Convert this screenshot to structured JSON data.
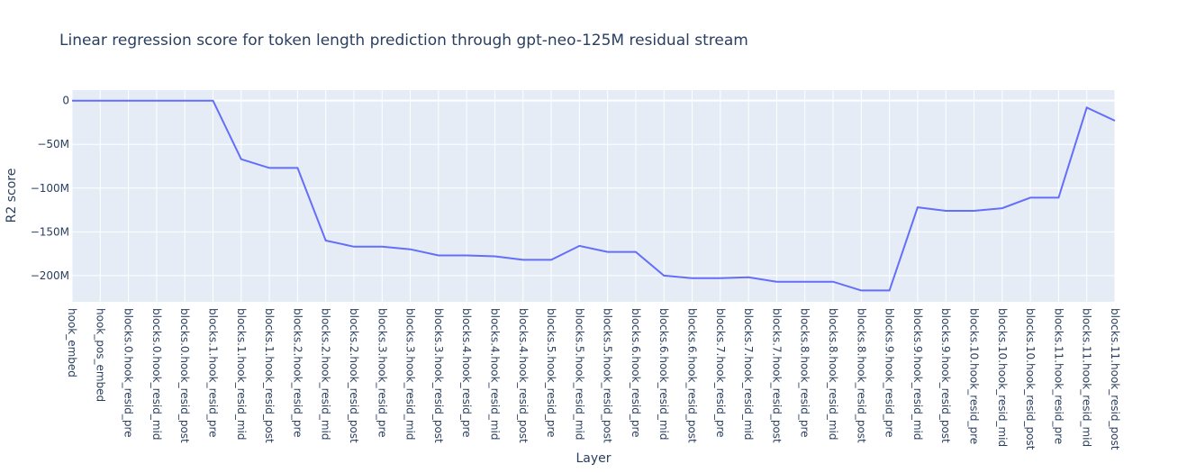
{
  "chart_data": {
    "type": "line",
    "title": "Linear regression score for token length prediction through gpt-neo-125M residual stream",
    "xlabel": "Layer",
    "ylabel": "R2 score",
    "ylim": [
      -230000000,
      12000000
    ],
    "yticks": [
      0,
      -50000000,
      -100000000,
      -150000000,
      -200000000
    ],
    "ytick_labels": [
      "0",
      "−50M",
      "−100M",
      "−150M",
      "−200M"
    ],
    "grid": true,
    "colors": {
      "line": "#636efa",
      "plot_bg": "#e5ecf6",
      "grid": "#ffffff",
      "text": "#2a3f5f"
    },
    "categories": [
      "hook_embed",
      "hook_pos_embed",
      "blocks.0.hook_resid_pre",
      "blocks.0.hook_resid_mid",
      "blocks.0.hook_resid_post",
      "blocks.1.hook_resid_pre",
      "blocks.1.hook_resid_mid",
      "blocks.1.hook_resid_post",
      "blocks.2.hook_resid_pre",
      "blocks.2.hook_resid_mid",
      "blocks.2.hook_resid_post",
      "blocks.3.hook_resid_pre",
      "blocks.3.hook_resid_mid",
      "blocks.3.hook_resid_post",
      "blocks.4.hook_resid_pre",
      "blocks.4.hook_resid_mid",
      "blocks.4.hook_resid_post",
      "blocks.5.hook_resid_pre",
      "blocks.5.hook_resid_mid",
      "blocks.5.hook_resid_post",
      "blocks.6.hook_resid_pre",
      "blocks.6.hook_resid_mid",
      "blocks.6.hook_resid_post",
      "blocks.7.hook_resid_pre",
      "blocks.7.hook_resid_mid",
      "blocks.7.hook_resid_post",
      "blocks.8.hook_resid_pre",
      "blocks.8.hook_resid_mid",
      "blocks.8.hook_resid_post",
      "blocks.9.hook_resid_pre",
      "blocks.9.hook_resid_mid",
      "blocks.9.hook_resid_post",
      "blocks.10.hook_resid_pre",
      "blocks.10.hook_resid_mid",
      "blocks.10.hook_resid_post",
      "blocks.11.hook_resid_pre",
      "blocks.11.hook_resid_mid",
      "blocks.11.hook_resid_post"
    ],
    "values": [
      0,
      0,
      0,
      0,
      0,
      0,
      -67000000,
      -77000000,
      -77000000,
      -160000000,
      -167000000,
      -167000000,
      -170000000,
      -177000000,
      -177000000,
      -178000000,
      -182000000,
      -182000000,
      -166000000,
      -173000000,
      -173000000,
      -200000000,
      -203000000,
      -203000000,
      -202000000,
      -207000000,
      -207000000,
      -207000000,
      -217000000,
      -217000000,
      -122000000,
      -126000000,
      -126000000,
      -123000000,
      -111000000,
      -111000000,
      -8000000,
      -23000000
    ]
  }
}
